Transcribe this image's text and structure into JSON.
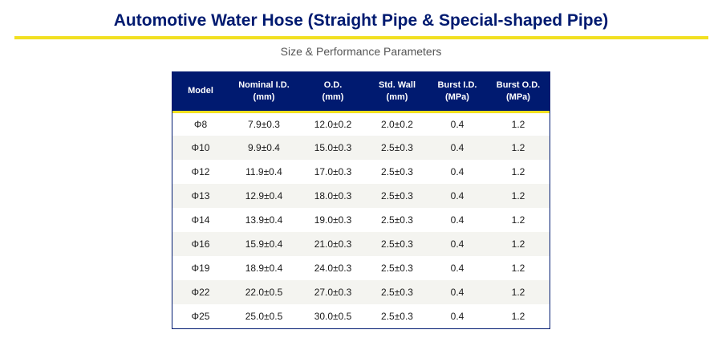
{
  "title": "Automotive Water Hose (Straight Pipe & Special-shaped Pipe)",
  "subtitle": "Size & Performance Parameters",
  "colors": {
    "header_bg": "#001a70",
    "accent_yellow": "#f2e021",
    "title_text": "#001a70",
    "alt_row_bg": "#f4f4f0"
  },
  "table": {
    "headers": [
      {
        "line1": "Model",
        "line2": ""
      },
      {
        "line1": "Nominal I.D.",
        "line2": "(mm)"
      },
      {
        "line1": "O.D.",
        "line2": "(mm)"
      },
      {
        "line1": "Std. Wall",
        "line2": "(mm)"
      },
      {
        "line1": "Burst I.D.",
        "line2": "(MPa)"
      },
      {
        "line1": "Burst O.D.",
        "line2": "(MPa)"
      }
    ],
    "rows": [
      [
        "Φ8",
        "7.9±0.3",
        "12.0±0.2",
        "2.0±0.2",
        "0.4",
        "1.2"
      ],
      [
        "Φ10",
        "9.9±0.4",
        "15.0±0.3",
        "2.5±0.3",
        "0.4",
        "1.2"
      ],
      [
        "Φ12",
        "11.9±0.4",
        "17.0±0.3",
        "2.5±0.3",
        "0.4",
        "1.2"
      ],
      [
        "Φ13",
        "12.9±0.4",
        "18.0±0.3",
        "2.5±0.3",
        "0.4",
        "1.2"
      ],
      [
        "Φ14",
        "13.9±0.4",
        "19.0±0.3",
        "2.5±0.3",
        "0.4",
        "1.2"
      ],
      [
        "Φ16",
        "15.9±0.4",
        "21.0±0.3",
        "2.5±0.3",
        "0.4",
        "1.2"
      ],
      [
        "Φ19",
        "18.9±0.4",
        "24.0±0.3",
        "2.5±0.3",
        "0.4",
        "1.2"
      ],
      [
        "Φ22",
        "22.0±0.5",
        "27.0±0.3",
        "2.5±0.3",
        "0.4",
        "1.2"
      ],
      [
        "Φ25",
        "25.0±0.5",
        "30.0±0.5",
        "2.5±0.3",
        "0.4",
        "1.2"
      ]
    ]
  }
}
